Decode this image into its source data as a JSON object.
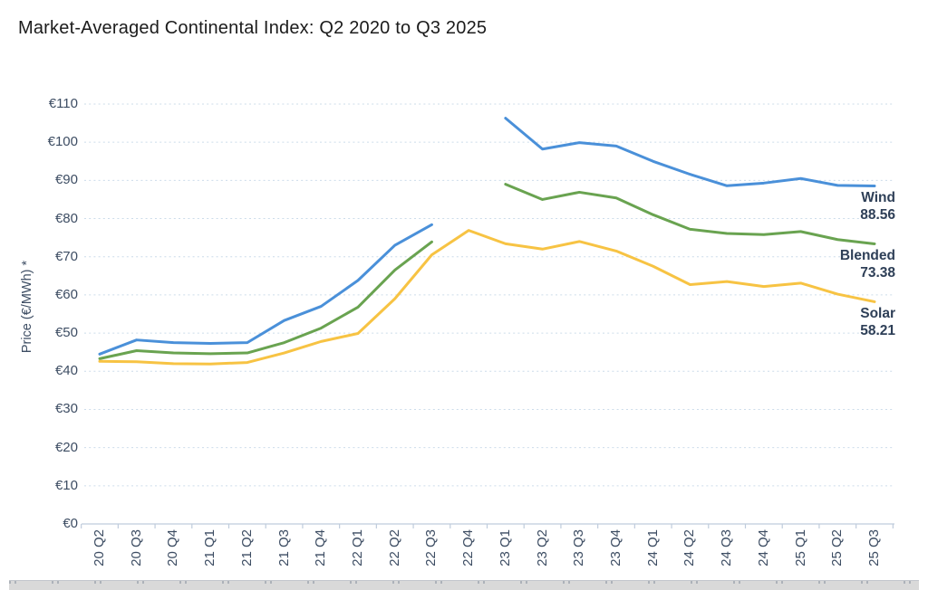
{
  "title": "Market-Averaged Continental Index: Q2 2020 to Q3 2025",
  "chart_data": {
    "type": "line",
    "title": "Market-Averaged Continental Index: Q2 2020 to Q3 2025",
    "xlabel": "",
    "ylabel": "Price (€/MWh) *",
    "ylim": [
      0,
      110
    ],
    "y_tick_step": 10,
    "y_ticks": [
      "€0",
      "€10",
      "€20",
      "€30",
      "€40",
      "€50",
      "€60",
      "€70",
      "€80",
      "€90",
      "€100",
      "€110"
    ],
    "grid": "horizontal dashed",
    "legend_position": "line-end labels, right side",
    "categories": [
      "20 Q2",
      "20 Q3",
      "20 Q4",
      "21 Q1",
      "21 Q2",
      "21 Q3",
      "21 Q4",
      "22 Q1",
      "22 Q2",
      "22 Q3",
      "22 Q4",
      "23 Q1",
      "23 Q2",
      "23 Q3",
      "23 Q4",
      "24 Q1",
      "24 Q2",
      "24 Q3",
      "24 Q4",
      "25 Q1",
      "25 Q2",
      "25 Q3"
    ],
    "series": [
      {
        "name": "Wind",
        "color": "#4a90d9",
        "end_label_name": "Wind",
        "end_label_value": "88.56",
        "values": [
          44.5,
          48.2,
          47.5,
          47.3,
          47.5,
          53.3,
          57.0,
          63.8,
          73.0,
          78.4,
          null,
          106.3,
          98.2,
          99.9,
          99.0,
          95.0,
          91.6,
          88.6,
          89.3,
          90.5,
          88.7,
          88.56
        ]
      },
      {
        "name": "Blended",
        "color": "#69a350",
        "end_label_name": "Blended",
        "end_label_value": "73.38",
        "values": [
          43.3,
          45.4,
          44.8,
          44.6,
          44.8,
          47.5,
          51.3,
          56.8,
          66.5,
          73.9,
          null,
          89.0,
          85.0,
          86.9,
          85.4,
          81.0,
          77.2,
          76.1,
          75.8,
          76.6,
          74.5,
          73.38
        ]
      },
      {
        "name": "Solar",
        "color": "#f7c343",
        "end_label_name": "Solar",
        "end_label_value": "58.21",
        "values": [
          42.6,
          42.5,
          42.0,
          41.9,
          42.3,
          44.8,
          47.8,
          49.9,
          59.0,
          70.5,
          76.9,
          73.4,
          72.0,
          74.0,
          71.5,
          67.5,
          62.7,
          63.5,
          62.2,
          63.1,
          60.2,
          58.21
        ]
      }
    ]
  },
  "colors": {
    "title_text": "#1b1b1b",
    "axis_text": "#3d4d63",
    "series_label_text": "#2e3f57",
    "gridline": "#ccdcea",
    "axis_line": "#bfccdc",
    "bottom_strip": "#d9d9d9"
  }
}
